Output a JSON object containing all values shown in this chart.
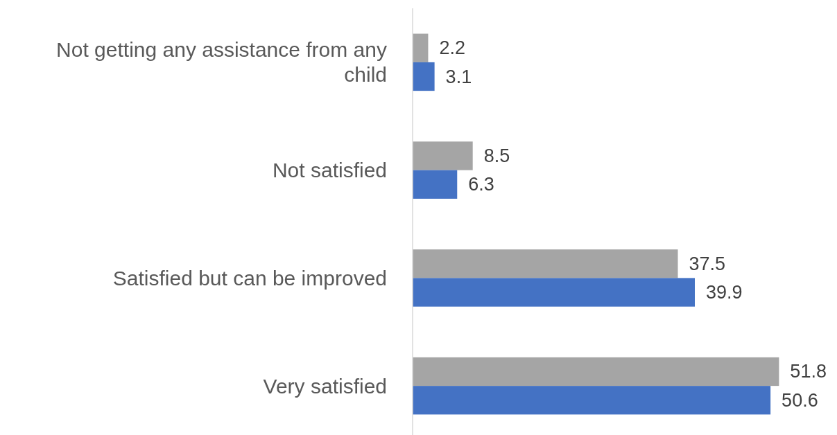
{
  "chart_data": {
    "type": "bar",
    "orientation": "horizontal",
    "categories": [
      "Not getting any assistance from any child",
      "Not satisfied",
      "Satisfied but can be improved",
      "Very satisfied"
    ],
    "series": [
      {
        "color": "#a5a5a5",
        "values": [
          2.2,
          8.5,
          37.5,
          51.8
        ]
      },
      {
        "color": "#4472c4",
        "values": [
          3.1,
          6.3,
          39.9,
          50.6
        ]
      }
    ],
    "xlim": [
      0,
      60
    ],
    "data_labels": true,
    "tick_labels": "y"
  }
}
